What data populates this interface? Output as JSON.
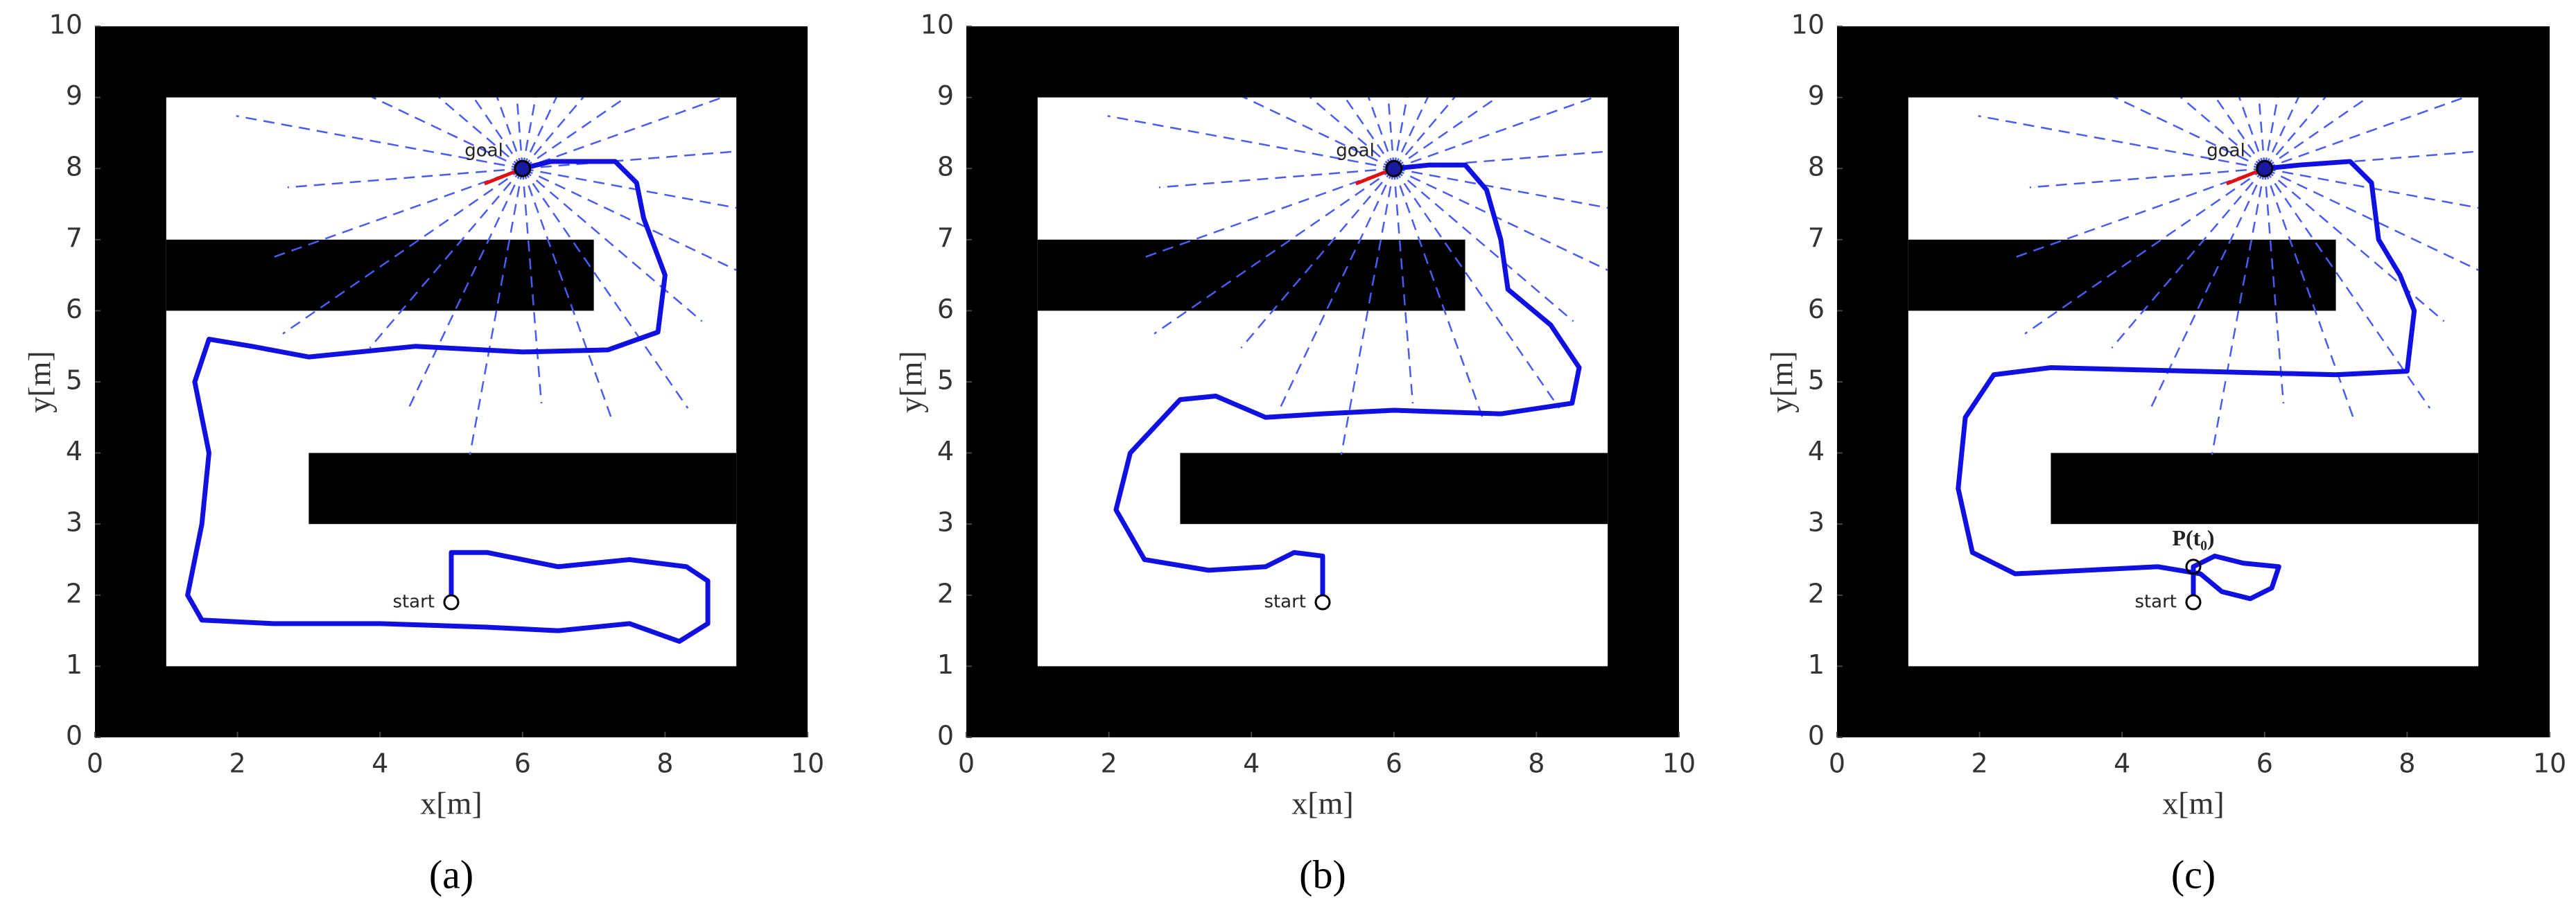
{
  "chart_data": [
    {
      "type": "line",
      "panel_label": "(a)",
      "x_label": "x[m]",
      "y_label": "y[m]",
      "xlim": [
        0,
        10
      ],
      "ylim": [
        0,
        10
      ],
      "xticks": [
        0,
        2,
        4,
        6,
        8,
        10
      ],
      "yticks": [
        0,
        1,
        2,
        3,
        4,
        5,
        6,
        7,
        8,
        9,
        10
      ],
      "walls": [
        [
          0,
          0,
          10,
          1
        ],
        [
          0,
          9,
          10,
          10
        ],
        [
          0,
          0,
          1,
          10
        ],
        [
          9,
          0,
          10,
          10
        ],
        [
          1,
          6,
          7,
          7
        ],
        [
          3,
          3,
          9,
          4
        ]
      ],
      "goal": {
        "label": "goal",
        "x": 6,
        "y": 8
      },
      "start": {
        "label": "start",
        "x": 5,
        "y": 1.9
      },
      "series": [
        {
          "color": "#1010e0",
          "x": [
            5,
            5,
            5.5,
            6.5,
            7.5,
            8.3,
            8.6,
            8.6,
            8.2,
            7.5,
            6.5,
            5.5,
            4,
            2.5,
            1.5,
            1.3,
            1.5,
            1.6,
            1.4,
            1.6,
            2.2,
            3,
            4.5,
            6,
            7.2,
            7.9,
            8,
            7.7,
            7.6,
            7.3,
            6.8,
            6.4,
            6
          ],
          "values": [
            1.9,
            2.6,
            2.6,
            2.4,
            2.5,
            2.4,
            2.2,
            1.6,
            1.35,
            1.6,
            1.5,
            1.55,
            1.6,
            1.6,
            1.65,
            2,
            3,
            4,
            5,
            5.6,
            5.5,
            5.35,
            5.5,
            5.42,
            5.45,
            5.7,
            6.5,
            7.3,
            7.8,
            8.1,
            8.1,
            8.1,
            8
          ]
        }
      ]
    },
    {
      "type": "line",
      "panel_label": "(b)",
      "x_label": "x[m]",
      "y_label": "y[m]",
      "xlim": [
        0,
        10
      ],
      "ylim": [
        0,
        10
      ],
      "xticks": [
        0,
        2,
        4,
        6,
        8,
        10
      ],
      "yticks": [
        0,
        1,
        2,
        3,
        4,
        5,
        6,
        7,
        8,
        9,
        10
      ],
      "walls": [
        [
          0,
          0,
          10,
          1
        ],
        [
          0,
          9,
          10,
          10
        ],
        [
          0,
          0,
          1,
          10
        ],
        [
          9,
          0,
          10,
          10
        ],
        [
          1,
          6,
          7,
          7
        ],
        [
          3,
          3,
          9,
          4
        ]
      ],
      "goal": {
        "label": "goal",
        "x": 6,
        "y": 8
      },
      "start": {
        "label": "start",
        "x": 5,
        "y": 1.9
      },
      "series": [
        {
          "color": "#1010e0",
          "x": [
            5,
            5,
            4.6,
            4.2,
            3.4,
            2.5,
            2.1,
            2.3,
            3,
            3.5,
            4.2,
            5,
            6,
            7.5,
            8.5,
            8.6,
            8.2,
            7.6,
            7.5,
            7.3,
            7,
            6.5,
            6
          ],
          "values": [
            1.9,
            2.55,
            2.6,
            2.4,
            2.35,
            2.5,
            3.2,
            4,
            4.75,
            4.8,
            4.5,
            4.55,
            4.6,
            4.55,
            4.7,
            5.2,
            5.8,
            6.3,
            7,
            7.7,
            8.05,
            8.05,
            8
          ]
        }
      ]
    },
    {
      "type": "line",
      "panel_label": "(c)",
      "x_label": "x[m]",
      "y_label": "y[m]",
      "xlim": [
        0,
        10
      ],
      "ylim": [
        0,
        10
      ],
      "xticks": [
        0,
        2,
        4,
        6,
        8,
        10
      ],
      "yticks": [
        0,
        1,
        2,
        3,
        4,
        5,
        6,
        7,
        8,
        9,
        10
      ],
      "walls": [
        [
          0,
          0,
          10,
          1
        ],
        [
          0,
          9,
          10,
          10
        ],
        [
          0,
          0,
          1,
          10
        ],
        [
          9,
          0,
          10,
          10
        ],
        [
          1,
          6,
          7,
          7
        ],
        [
          3,
          3,
          9,
          4
        ]
      ],
      "goal": {
        "label": "goal",
        "x": 6,
        "y": 8
      },
      "start": {
        "label": "start",
        "x": 5,
        "y": 1.9
      },
      "marker": {
        "label": "P(t₀)",
        "x": 5,
        "y": 2.4
      },
      "series": [
        {
          "color": "#1010e0",
          "x": [
            5,
            5,
            5.3,
            5.7,
            6.2,
            6.1,
            5.8,
            5.4,
            5.1,
            4.5,
            3.5,
            2.5,
            1.9,
            1.7,
            1.8,
            2.2,
            3,
            5,
            7,
            8,
            8.1,
            7.9,
            7.6,
            7.5,
            7.2,
            6.5,
            6
          ],
          "values": [
            2,
            2.4,
            2.55,
            2.45,
            2.4,
            2.1,
            1.95,
            2.05,
            2.3,
            2.4,
            2.35,
            2.3,
            2.6,
            3.5,
            4.5,
            5.1,
            5.2,
            5.15,
            5.1,
            5.15,
            6,
            6.5,
            7,
            7.8,
            8.1,
            8.05,
            8
          ]
        }
      ]
    }
  ]
}
